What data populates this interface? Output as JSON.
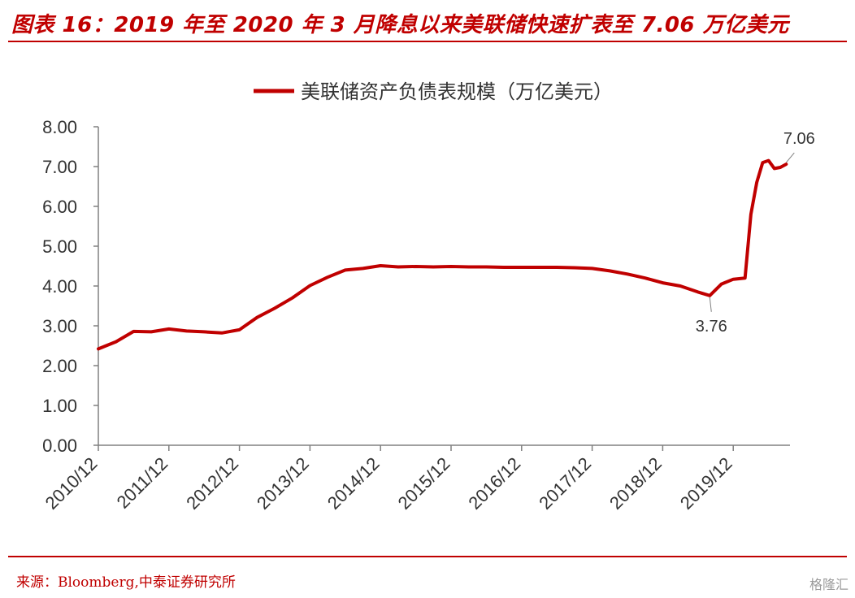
{
  "header": {
    "title": "图表 16：2019 年至 2020 年 3 月降息以来美联储快速扩表至 7.06 万亿美元"
  },
  "footer": {
    "source": "来源：Bloomberg,中泰证券研究所",
    "watermark": "格隆汇"
  },
  "colors": {
    "accent": "#c00000",
    "series": "#c00000",
    "axis": "#808080",
    "text": "#333333"
  },
  "chart_data": {
    "type": "line",
    "title": "",
    "xlabel": "",
    "ylabel": "",
    "ylim": [
      0,
      8
    ],
    "yticks": [
      "0.00",
      "1.00",
      "2.00",
      "3.00",
      "4.00",
      "5.00",
      "6.00",
      "7.00",
      "8.00"
    ],
    "xticks": [
      "2010/12",
      "2011/12",
      "2012/12",
      "2013/12",
      "2014/12",
      "2015/12",
      "2016/12",
      "2017/12",
      "2018/12",
      "2019/12"
    ],
    "grid": false,
    "legend_position": "top-center",
    "series": [
      {
        "name": "美联储资产负债表规模（万亿美元）",
        "x": [
          "2010-12",
          "2011-03",
          "2011-06",
          "2011-09",
          "2011-12",
          "2012-03",
          "2012-06",
          "2012-09",
          "2012-12",
          "2013-03",
          "2013-06",
          "2013-09",
          "2013-12",
          "2014-03",
          "2014-06",
          "2014-09",
          "2014-12",
          "2015-03",
          "2015-06",
          "2015-09",
          "2015-12",
          "2016-03",
          "2016-06",
          "2016-09",
          "2016-12",
          "2017-03",
          "2017-06",
          "2017-09",
          "2017-12",
          "2018-03",
          "2018-06",
          "2018-09",
          "2018-12",
          "2019-03",
          "2019-06",
          "2019-08",
          "2019-10",
          "2019-12",
          "2020-02",
          "2020-03",
          "2020-04",
          "2020-05",
          "2020-06",
          "2020-07",
          "2020-08",
          "2020-09"
        ],
        "values": [
          2.42,
          2.6,
          2.86,
          2.85,
          2.92,
          2.87,
          2.85,
          2.82,
          2.9,
          3.21,
          3.44,
          3.7,
          4.01,
          4.22,
          4.4,
          4.44,
          4.51,
          4.48,
          4.49,
          4.48,
          4.49,
          4.48,
          4.48,
          4.47,
          4.47,
          4.47,
          4.47,
          4.46,
          4.44,
          4.38,
          4.3,
          4.2,
          4.08,
          4.0,
          3.85,
          3.76,
          4.05,
          4.17,
          4.2,
          5.8,
          6.6,
          7.1,
          7.15,
          6.95,
          6.98,
          7.06
        ]
      }
    ],
    "annotations": [
      {
        "x": "2019-08",
        "value": 3.76,
        "label": "3.76"
      },
      {
        "x": "2020-09",
        "value": 7.06,
        "label": "7.06"
      }
    ]
  }
}
